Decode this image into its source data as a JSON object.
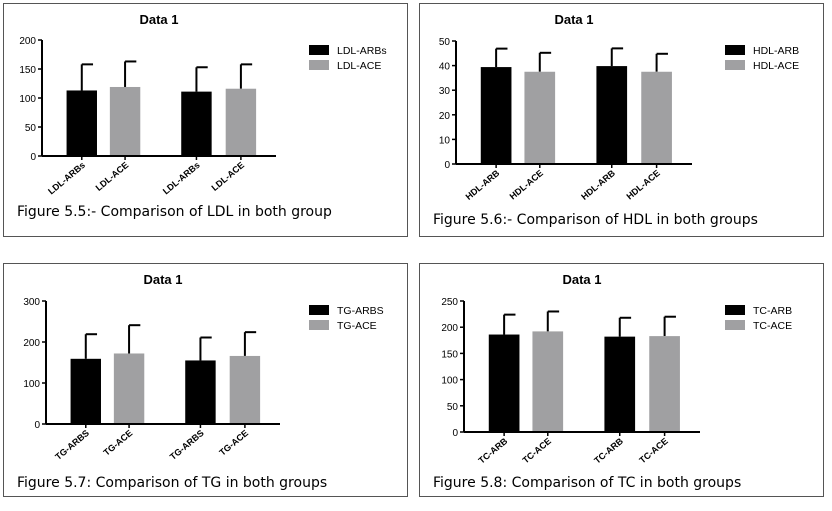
{
  "colors": {
    "arb": "#000000",
    "ace": "#a0a0a2"
  },
  "chart_data": [
    {
      "type": "bar",
      "title": "Data 1",
      "ylim": [
        0,
        200
      ],
      "yticks": [
        0,
        50,
        100,
        150,
        200
      ],
      "categories": [
        "LDL-ARBs",
        "LDL-ACE",
        "LDL-ARBs",
        "LDL-ACE"
      ],
      "values": [
        113,
        119,
        111,
        116
      ],
      "error_upper": [
        158,
        163,
        153,
        158
      ],
      "legend": [
        "LDL-ARBs",
        "LDL-ACE"
      ],
      "legend_placement": "top-right",
      "grid": false,
      "caption": "Figure 5.5:- Comparison of LDL in both group"
    },
    {
      "type": "bar",
      "title": "Data 1",
      "ylim": [
        0,
        50
      ],
      "yticks": [
        0,
        10,
        20,
        30,
        40,
        50
      ],
      "categories": [
        "HDL-ARB",
        "HDL-ACE",
        "HDL-ARB",
        "HDL-ACE"
      ],
      "values": [
        39.4,
        37.5,
        39.8,
        37.5
      ],
      "error_upper": [
        46.9,
        45.2,
        47.0,
        44.8
      ],
      "legend": [
        "HDL-ARB",
        "HDL-ACE"
      ],
      "legend_placement": "top-right",
      "grid": false,
      "caption": "Figure 5.6:- Comparison of HDL in both groups"
    },
    {
      "type": "bar",
      "title": "Data 1",
      "ylim": [
        0,
        300
      ],
      "yticks": [
        0,
        100,
        200,
        300
      ],
      "categories": [
        "TG-ARBS",
        "TG-ACE",
        "TG-ARBS",
        "TG-ACE"
      ],
      "values": [
        159,
        172,
        155,
        166
      ],
      "error_upper": [
        219,
        241,
        211,
        224
      ],
      "legend": [
        "TG-ARBS",
        "TG-ACE"
      ],
      "legend_placement": "top-right",
      "grid": false,
      "caption": "Figure 5.7: Comparison of TG in both groups"
    },
    {
      "type": "bar",
      "title": "Data 1",
      "ylim": [
        0,
        250
      ],
      "yticks": [
        0,
        50,
        100,
        150,
        200,
        250
      ],
      "categories": [
        "TC-ARB",
        "TC-ACE",
        "TC-ARB",
        "TC-ACE"
      ],
      "values": [
        186,
        192,
        182,
        183
      ],
      "error_upper": [
        224,
        230,
        218,
        220
      ],
      "legend": [
        "TC-ARB",
        "TC-ACE"
      ],
      "legend_placement": "top-right",
      "grid": false,
      "caption": "Figure 5.8: Comparison of TC in both groups"
    }
  ]
}
